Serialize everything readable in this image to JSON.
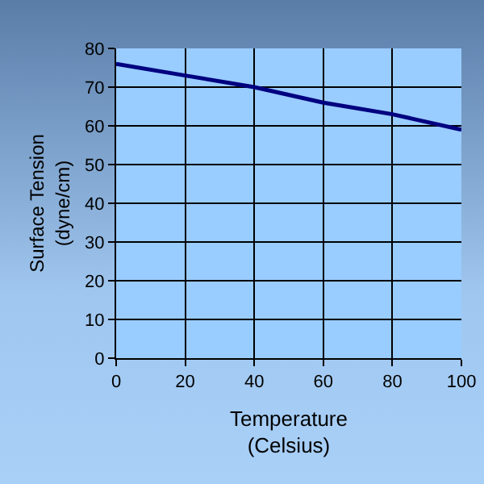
{
  "chart_data": {
    "type": "line",
    "xlabel": "Temperature\n(Celsius)",
    "ylabel": "Surface Tension\n(dyne/cm)",
    "x": [
      0,
      20,
      40,
      60,
      80,
      100
    ],
    "series": [
      {
        "color": "#000080",
        "values": [
          76,
          73,
          70,
          66,
          63,
          59
        ]
      }
    ],
    "xlim": [
      0,
      100
    ],
    "xticks": [
      0,
      20,
      40,
      60,
      80,
      100
    ],
    "ylim": [
      0,
      80
    ],
    "yticks": [
      0,
      10,
      20,
      30,
      40,
      50,
      60,
      70,
      80
    ],
    "grid": true,
    "marker": "none",
    "line_style": "solid"
  }
}
